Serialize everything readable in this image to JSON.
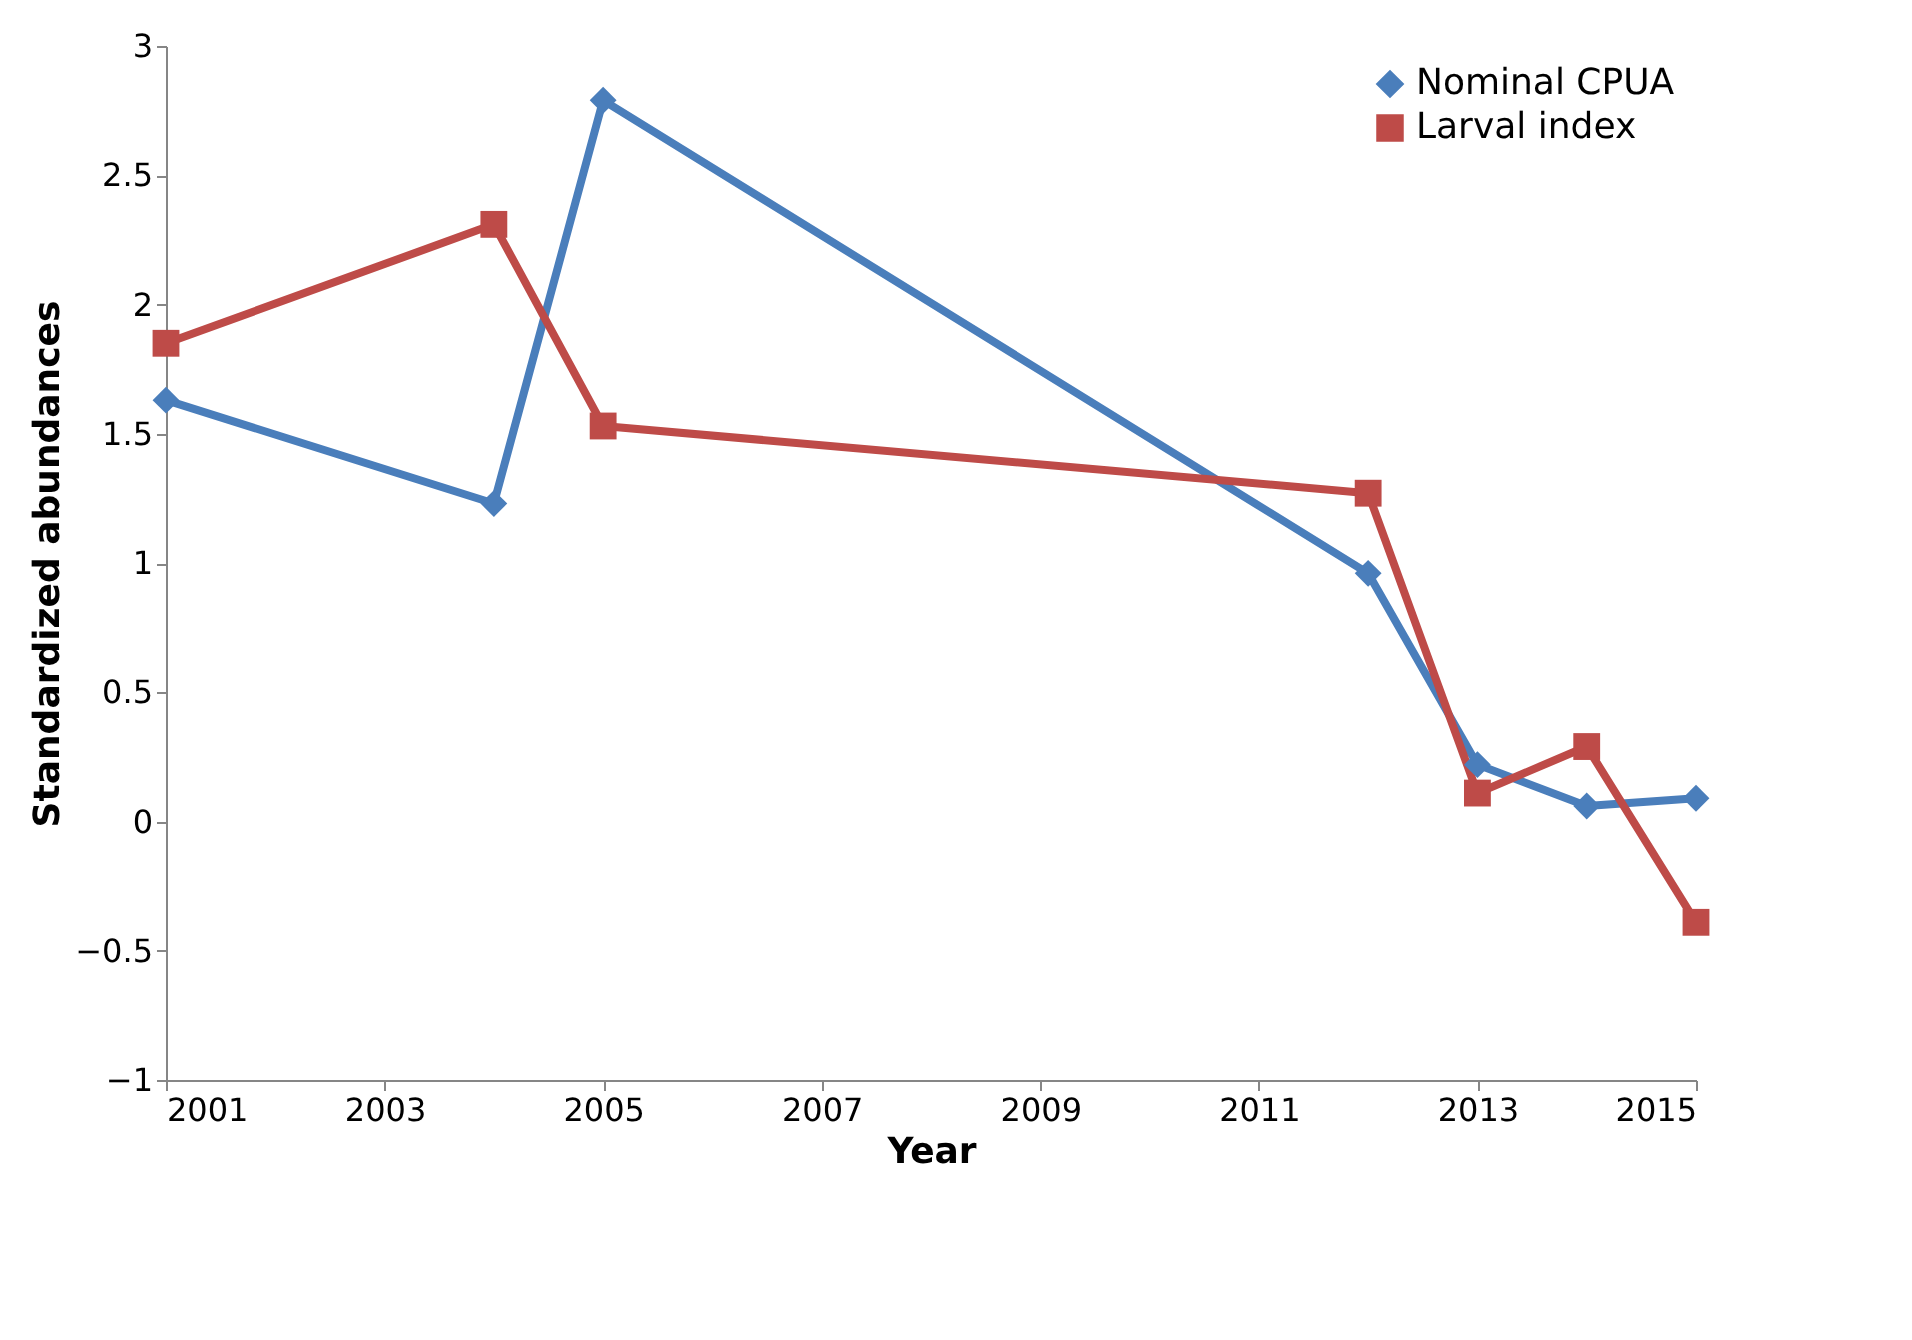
{
  "chart_data": {
    "type": "line",
    "xlabel": "Year",
    "ylabel": "Standardized abundances",
    "x": [
      2001,
      2004,
      2005,
      2012,
      2013,
      2014,
      2015
    ],
    "series": [
      {
        "name": "Nominal CPUA",
        "color": "#4a7ebb",
        "marker": "diamond",
        "values": [
          1.63,
          1.23,
          2.79,
          0.96,
          0.22,
          0.06,
          0.09
        ]
      },
      {
        "name": "Larval index",
        "color": "#be4b48",
        "marker": "square",
        "values": [
          1.85,
          2.31,
          1.53,
          1.27,
          0.11,
          0.29,
          -0.39
        ]
      }
    ],
    "xlim": [
      2001,
      2015
    ],
    "xticks": [
      2001,
      2003,
      2005,
      2007,
      2009,
      2011,
      2013,
      2015
    ],
    "ylim": [
      -1,
      3
    ],
    "yticks": [
      -1,
      -0.5,
      0,
      0.5,
      1,
      1.5,
      2,
      2.5,
      3
    ],
    "grid": false,
    "legend": "top right",
    "line_style": "solid"
  }
}
